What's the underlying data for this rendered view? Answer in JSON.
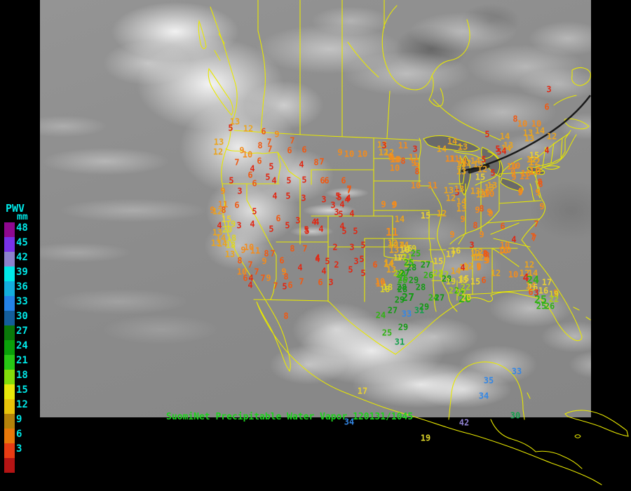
{
  "caption": {
    "text": "SuomiNet Precipitable Water Vapor 120131/1045",
    "color": "#1ed21e"
  },
  "colorbar": {
    "title": "PWV",
    "unit": "mm",
    "label_color": "#00e8e8",
    "ticks": [
      48,
      45,
      42,
      39,
      36,
      33,
      30,
      27,
      24,
      21,
      18,
      15,
      12,
      9,
      6,
      3
    ],
    "segment_colors": [
      "#900890",
      "#7832e8",
      "#8c82cc",
      "#00e8e8",
      "#14aede",
      "#2482e8",
      "#145e9c",
      "#0a780a",
      "#0aa00a",
      "#28c814",
      "#82dc0a",
      "#e8e80a",
      "#e8c40a",
      "#b4820a",
      "#e8780a",
      "#e83c14",
      "#b41414"
    ]
  },
  "map": {
    "boundary_color": "#e8e800",
    "terminator_color": "#0c0c0c",
    "water_fill": "#6a6a6a"
  },
  "stations": {
    "value_palette": {
      "3": "#e02814",
      "6": "#ef5a14",
      "9": "#f28c1e",
      "12": "#eaa41e",
      "15": "#ead232",
      "18": "#dcd428",
      "21": "#aed214",
      "24": "#32b414",
      "27": "#149b14",
      "30": "#13a04b",
      "33": "#3387e6",
      "36": "#28b4dc",
      "39": "#00e0e0",
      "42": "#9082d2",
      "45": "#7832e8",
      "48": "#8c0a8c"
    },
    "points": [
      [
        13,
        335,
        174
      ],
      [
        5,
        329,
        183
      ],
      [
        12,
        354,
        184
      ],
      [
        6,
        376,
        188
      ],
      [
        9,
        395,
        192
      ],
      [
        7,
        417,
        201
      ],
      [
        13,
        312,
        203
      ],
      [
        12,
        311,
        217
      ],
      [
        8,
        371,
        208
      ],
      [
        7,
        384,
        203
      ],
      [
        7,
        385,
        213
      ],
      [
        9,
        345,
        215
      ],
      [
        10,
        353,
        221
      ],
      [
        6,
        413,
        215
      ],
      [
        6,
        434,
        214
      ],
      [
        7,
        338,
        232
      ],
      [
        6,
        370,
        230
      ],
      [
        8,
        451,
        232
      ],
      [
        7,
        459,
        231
      ],
      [
        4,
        360,
        241
      ],
      [
        5,
        387,
        238
      ],
      [
        4,
        430,
        235
      ],
      [
        6,
        357,
        250
      ],
      [
        5,
        382,
        253
      ],
      [
        4,
        391,
        258
      ],
      [
        5,
        412,
        258
      ],
      [
        5,
        434,
        257
      ],
      [
        6,
        363,
        262
      ],
      [
        6,
        466,
        258
      ],
      [
        5,
        330,
        258
      ],
      [
        9,
        318,
        273
      ],
      [
        3,
        342,
        273
      ],
      [
        4,
        392,
        280
      ],
      [
        5,
        411,
        280
      ],
      [
        11,
        318,
        292
      ],
      [
        6,
        338,
        293
      ],
      [
        9,
        303,
        300
      ],
      [
        12,
        310,
        302
      ],
      [
        8,
        319,
        300
      ],
      [
        5,
        363,
        302
      ],
      [
        15,
        323,
        313
      ],
      [
        19,
        329,
        320
      ],
      [
        3,
        341,
        322
      ],
      [
        4,
        313,
        322
      ],
      [
        20,
        324,
        328
      ],
      [
        4,
        360,
        320
      ],
      [
        13,
        310,
        332
      ],
      [
        6,
        397,
        312
      ],
      [
        5,
        387,
        327
      ],
      [
        3,
        425,
        315
      ],
      [
        5,
        410,
        322
      ],
      [
        4,
        452,
        317
      ],
      [
        4,
        458,
        327
      ],
      [
        5,
        438,
        330
      ],
      [
        14,
        315,
        340
      ],
      [
        18,
        330,
        340
      ],
      [
        13,
        308,
        347
      ],
      [
        14,
        317,
        348
      ],
      [
        18,
        329,
        350
      ],
      [
        10,
        355,
        353
      ],
      [
        9,
        347,
        357
      ],
      [
        11,
        364,
        358
      ],
      [
        13,
        328,
        363
      ],
      [
        8,
        380,
        362
      ],
      [
        7,
        389,
        362
      ],
      [
        9,
        377,
        373
      ],
      [
        8,
        342,
        372
      ],
      [
        6,
        402,
        372
      ],
      [
        8,
        417,
        355
      ],
      [
        7,
        435,
        355
      ],
      [
        7,
        357,
        378
      ],
      [
        4,
        428,
        382
      ],
      [
        4,
        453,
        368
      ],
      [
        10,
        345,
        388
      ],
      [
        7,
        366,
        388
      ],
      [
        9,
        405,
        388
      ],
      [
        8,
        408,
        395
      ],
      [
        6,
        350,
        397
      ],
      [
        4,
        358,
        397
      ],
      [
        7,
        375,
        397
      ],
      [
        9,
        383,
        397
      ],
      [
        7,
        430,
        402
      ],
      [
        4,
        357,
        407
      ],
      [
        7,
        393,
        408
      ],
      [
        5,
        406,
        409
      ],
      [
        6,
        414,
        407
      ],
      [
        8,
        408,
        451
      ],
      [
        3,
        433,
        283
      ],
      [
        3,
        462,
        285
      ],
      [
        5,
        484,
        282
      ],
      [
        4,
        497,
        283
      ],
      [
        7,
        498,
        272
      ],
      [
        3,
        475,
        293
      ],
      [
        4,
        488,
        292
      ],
      [
        3,
        480,
        303
      ],
      [
        5,
        486,
        306
      ],
      [
        4,
        502,
        305
      ],
      [
        9,
        547,
        292
      ],
      [
        9,
        563,
        292
      ],
      [
        4,
        448,
        317
      ],
      [
        5,
        437,
        328
      ],
      [
        4,
        488,
        323
      ],
      [
        5,
        491,
        330
      ],
      [
        5,
        507,
        330
      ],
      [
        14,
        570,
        313
      ],
      [
        11,
        559,
        332,
        1
      ],
      [
        2,
        478,
        353
      ],
      [
        3,
        502,
        353
      ],
      [
        5,
        518,
        350
      ],
      [
        12,
        561,
        350
      ],
      [
        14,
        576,
        350
      ],
      [
        13,
        562,
        357
      ],
      [
        16,
        581,
        355
      ],
      [
        4,
        453,
        370
      ],
      [
        5,
        467,
        373
      ],
      [
        2,
        480,
        378
      ],
      [
        4,
        462,
        387
      ],
      [
        3,
        508,
        373
      ],
      [
        5,
        516,
        370
      ],
      [
        5,
        500,
        385
      ],
      [
        6,
        535,
        378
      ],
      [
        14,
        554,
        377
      ],
      [
        13,
        558,
        385
      ],
      [
        5,
        518,
        390
      ],
      [
        17,
        573,
        368
      ],
      [
        21,
        581,
        367
      ],
      [
        6,
        457,
        403
      ],
      [
        3,
        472,
        403
      ],
      [
        10,
        543,
        405
      ],
      [
        18,
        549,
        413
      ],
      [
        24,
        572,
        392
      ],
      [
        26,
        574,
        400
      ],
      [
        28,
        574,
        413
      ],
      [
        22,
        584,
        377
      ],
      [
        9,
        485,
        218
      ],
      [
        10,
        498,
        220
      ],
      [
        10,
        517,
        220
      ],
      [
        13,
        545,
        207
      ],
      [
        12,
        547,
        218
      ],
      [
        9,
        557,
        225
      ],
      [
        10,
        563,
        228
      ],
      [
        10,
        563,
        240
      ],
      [
        6,
        460,
        258
      ],
      [
        6,
        490,
        258
      ],
      [
        7,
        498,
        270
      ],
      [
        5,
        482,
        280
      ],
      [
        4,
        495,
        285
      ],
      [
        12,
        560,
        347
      ],
      [
        14,
        570,
        350
      ],
      [
        16,
        577,
        357
      ],
      [
        19,
        587,
        355
      ],
      [
        25,
        593,
        362
      ],
      [
        17,
        568,
        368
      ],
      [
        25,
        583,
        375
      ],
      [
        28,
        587,
        382
      ],
      [
        27,
        607,
        378
      ],
      [
        14,
        555,
        375
      ],
      [
        22,
        568,
        390
      ],
      [
        27,
        577,
        390
      ],
      [
        26,
        575,
        397
      ],
      [
        29,
        590,
        400
      ],
      [
        28,
        573,
        410
      ],
      [
        28,
        600,
        410
      ],
      [
        10,
        542,
        402
      ],
      [
        18,
        553,
        410
      ],
      [
        26,
        611,
        393
      ],
      [
        22,
        625,
        390
      ],
      [
        15,
        625,
        373
      ],
      [
        17,
        643,
        363
      ],
      [
        16,
        650,
        358
      ],
      [
        3,
        673,
        350
      ],
      [
        12,
        682,
        360
      ],
      [
        12,
        683,
        368
      ],
      [
        8,
        695,
        365
      ],
      [
        9,
        695,
        372
      ],
      [
        14,
        650,
        387
      ],
      [
        12,
        662,
        382
      ],
      [
        9,
        683,
        380
      ],
      [
        15,
        662,
        398
      ],
      [
        22,
        633,
        392
      ],
      [
        28,
        637,
        398
      ],
      [
        19,
        643,
        402
      ],
      [
        21,
        647,
        415
      ],
      [
        24,
        655,
        415
      ],
      [
        22,
        658,
        418
      ],
      [
        26,
        663,
        427,
        1
      ],
      [
        24,
        618,
        425
      ],
      [
        27,
        627,
        425
      ],
      [
        29,
        570,
        428
      ],
      [
        27,
        582,
        425,
        1
      ],
      [
        33,
        580,
        448
      ],
      [
        31,
        598,
        443
      ],
      [
        29,
        605,
        438
      ],
      [
        27,
        560,
        443
      ],
      [
        24,
        543,
        450
      ],
      [
        29,
        575,
        467
      ],
      [
        25,
        552,
        475
      ],
      [
        31,
        570,
        488
      ],
      [
        22,
        664,
        410
      ],
      [
        20,
        665,
        425
      ],
      [
        3,
        548,
        208
      ],
      [
        11,
        575,
        208
      ],
      [
        3,
        592,
        213
      ],
      [
        12,
        555,
        218
      ],
      [
        9,
        558,
        223
      ],
      [
        10,
        565,
        228
      ],
      [
        8,
        575,
        230
      ],
      [
        11,
        590,
        225
      ],
      [
        9,
        590,
        233
      ],
      [
        9,
        595,
        237
      ],
      [
        8,
        595,
        245
      ],
      [
        14,
        645,
        202
      ],
      [
        14,
        630,
        213
      ],
      [
        13,
        660,
        210
      ],
      [
        11,
        648,
        227
      ],
      [
        11,
        642,
        227
      ],
      [
        11,
        660,
        230
      ],
      [
        13,
        658,
        235
      ],
      [
        12,
        665,
        233
      ],
      [
        14,
        678,
        230
      ],
      [
        13,
        682,
        235
      ],
      [
        12,
        688,
        242
      ],
      [
        13,
        658,
        245
      ],
      [
        15,
        685,
        253
      ],
      [
        10,
        735,
        237
      ],
      [
        12,
        758,
        228
      ],
      [
        9,
        732,
        247
      ],
      [
        10,
        750,
        248
      ],
      [
        13,
        702,
        265
      ],
      [
        9,
        743,
        273
      ],
      [
        13,
        678,
        273
      ],
      [
        10,
        692,
        275
      ],
      [
        13,
        640,
        272
      ],
      [
        5,
        652,
        275
      ],
      [
        5,
        710,
        213
      ],
      [
        14,
        722,
        212
      ],
      [
        10,
        593,
        265
      ],
      [
        11,
        617,
        265
      ],
      [
        13,
        655,
        270
      ],
      [
        12,
        643,
        283
      ],
      [
        14,
        658,
        288
      ],
      [
        13,
        658,
        298
      ],
      [
        13,
        686,
        278
      ],
      [
        9,
        547,
        292
      ],
      [
        9,
        562,
        293
      ],
      [
        15,
        607,
        308
      ],
      [
        12,
        630,
        305
      ],
      [
        9,
        660,
        313
      ],
      [
        9,
        681,
        300
      ],
      [
        8,
        687,
        298
      ],
      [
        9,
        700,
        305
      ],
      [
        8,
        678,
        322
      ],
      [
        9,
        645,
        335
      ],
      [
        3,
        783,
        128
      ],
      [
        6,
        780,
        153
      ],
      [
        8,
        735,
        170
      ],
      [
        10,
        745,
        177
      ],
      [
        10,
        765,
        177
      ],
      [
        14,
        770,
        187
      ],
      [
        12,
        787,
        195
      ],
      [
        13,
        753,
        190
      ],
      [
        13,
        755,
        198
      ],
      [
        14,
        720,
        195
      ],
      [
        4,
        780,
        215
      ],
      [
        13,
        725,
        208
      ],
      [
        5,
        695,
        192
      ],
      [
        5,
        712,
        217
      ],
      [
        4,
        719,
        216
      ],
      [
        15,
        762,
        222
      ],
      [
        12,
        762,
        232,
        1
      ],
      [
        10,
        730,
        238
      ],
      [
        10,
        763,
        245,
        1
      ],
      [
        5,
        690,
        228
      ],
      [
        5,
        703,
        247
      ],
      [
        9,
        733,
        253
      ],
      [
        11,
        748,
        252
      ],
      [
        8,
        771,
        263
      ],
      [
        13,
        698,
        268
      ],
      [
        10,
        698,
        277
      ],
      [
        9,
        742,
        275
      ],
      [
        9,
        767,
        275
      ],
      [
        8,
        770,
        260
      ],
      [
        9,
        773,
        295
      ],
      [
        9,
        698,
        303
      ],
      [
        6,
        717,
        323
      ],
      [
        4,
        733,
        342
      ],
      [
        7,
        765,
        320
      ],
      [
        7,
        762,
        340
      ],
      [
        10,
        720,
        350
      ],
      [
        10,
        722,
        357
      ],
      [
        8,
        692,
        362
      ],
      [
        9,
        687,
        335
      ],
      [
        7,
        760,
        338
      ],
      [
        10,
        718,
        358
      ],
      [
        12,
        678,
        362
      ],
      [
        8,
        693,
        363
      ],
      [
        12,
        680,
        368
      ],
      [
        9,
        693,
        372
      ],
      [
        12,
        668,
        380
      ],
      [
        4,
        660,
        382
      ],
      [
        9,
        683,
        382
      ],
      [
        12,
        707,
        390
      ],
      [
        12,
        755,
        378
      ],
      [
        10,
        732,
        392
      ],
      [
        12,
        748,
        390
      ],
      [
        14,
        760,
        390
      ],
      [
        4,
        750,
        397,
        1
      ],
      [
        24,
        760,
        400,
        1
      ],
      [
        15,
        660,
        400
      ],
      [
        15,
        678,
        402
      ],
      [
        6,
        690,
        400
      ],
      [
        14,
        757,
        408
      ],
      [
        16,
        760,
        410
      ],
      [
        17,
        780,
        403
      ],
      [
        6,
        757,
        417
      ],
      [
        3,
        765,
        418
      ],
      [
        16,
        775,
        415
      ],
      [
        9,
        793,
        418
      ],
      [
        19,
        790,
        420
      ],
      [
        22,
        790,
        427
      ],
      [
        25,
        771,
        428,
        1
      ],
      [
        25,
        772,
        437
      ],
      [
        26,
        784,
        437
      ],
      [
        17,
        517,
        558
      ],
      [
        35,
        697,
        543
      ],
      [
        33,
        737,
        530
      ],
      [
        34,
        690,
        565
      ],
      [
        34,
        498,
        602
      ],
      [
        42,
        662,
        603
      ],
      [
        19,
        607,
        625
      ],
      [
        30,
        735,
        593
      ]
    ]
  }
}
